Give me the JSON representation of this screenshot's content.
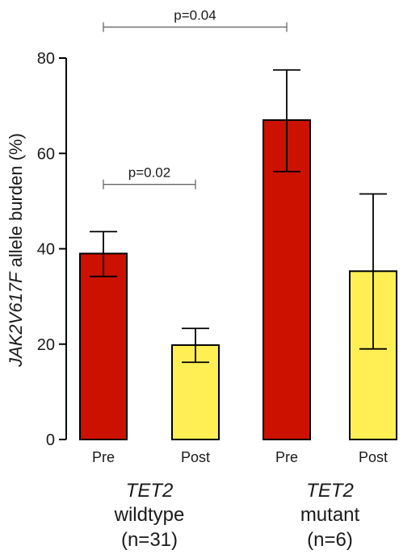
{
  "chart_data": {
    "type": "bar",
    "ylabel_italic": "JAK2V617F",
    "ylabel_rest": " allele burden (%)",
    "ylim": [
      0,
      80
    ],
    "yticks": [
      "0",
      "20",
      "40",
      "60",
      "80"
    ],
    "grid": false,
    "categories": [
      "Pre",
      "Post",
      "Pre",
      "Post"
    ],
    "values": [
      39,
      19.8,
      67,
      35.3
    ],
    "error_low": [
      34.2,
      16.2,
      56.2,
      19
    ],
    "error_high": [
      43.6,
      23.3,
      77.5,
      51.5
    ],
    "bar_colors": [
      "#cc1100",
      "#ffef55",
      "#cc1100",
      "#ffef55"
    ],
    "groups": [
      {
        "gene": "TET2",
        "status": "wildtype",
        "n": "(n=31)"
      },
      {
        "gene": "TET2",
        "status": "mutant",
        "n": "(n=6)"
      }
    ],
    "comparisons": [
      {
        "from": 0,
        "to": 1,
        "label": "p=0.02",
        "level": 53.5
      },
      {
        "from": 0,
        "to": 2,
        "label": "p=0.04",
        "level": 86.5
      }
    ]
  }
}
